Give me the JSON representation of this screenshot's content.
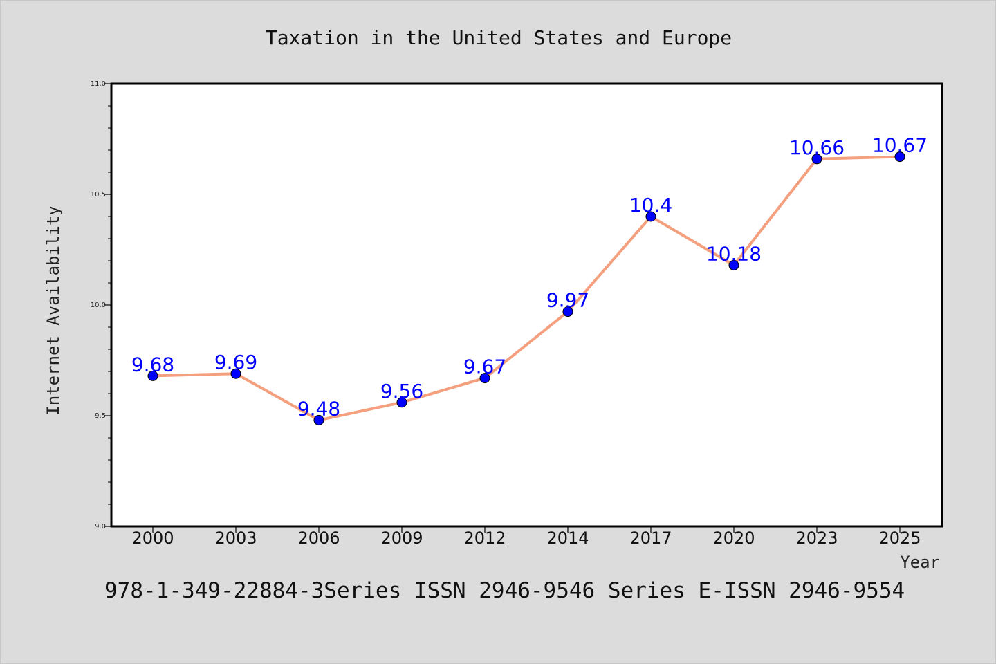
{
  "chart_data": {
    "type": "line",
    "title": "Taxation in the United States and Europe",
    "xlabel": "Year",
    "ylabel": "Internet Availability",
    "categories": [
      "2000",
      "2003",
      "2006",
      "2009",
      "2012",
      "2014",
      "2017",
      "2020",
      "2023",
      "2025"
    ],
    "series": [
      {
        "values": [
          9.68,
          9.69,
          9.48,
          9.56,
          9.67,
          9.97,
          10.4,
          10.18,
          10.66,
          10.67
        ],
        "labels": [
          "9.68",
          "9.69",
          "9.48",
          "9.56",
          "9.67",
          "9.97",
          "10.4",
          "10.18",
          "10.66",
          "10.67"
        ],
        "line_color": "#f4a07e",
        "marker_color": "#0000ff"
      }
    ],
    "ylim": [
      9.0,
      11.0
    ],
    "yticks": [
      "9.0",
      "9.5",
      "10.0",
      "10.5",
      "11.0"
    ],
    "grid": false,
    "legend": "none"
  },
  "footer": {
    "text": "978-1-349-22884-3Series ISSN 2946-9546 Series E-ISSN 2946-9554"
  },
  "colors": {
    "background": "#dcdcdc",
    "plot_background": "#ffffff",
    "label_color": "#0000ff"
  }
}
